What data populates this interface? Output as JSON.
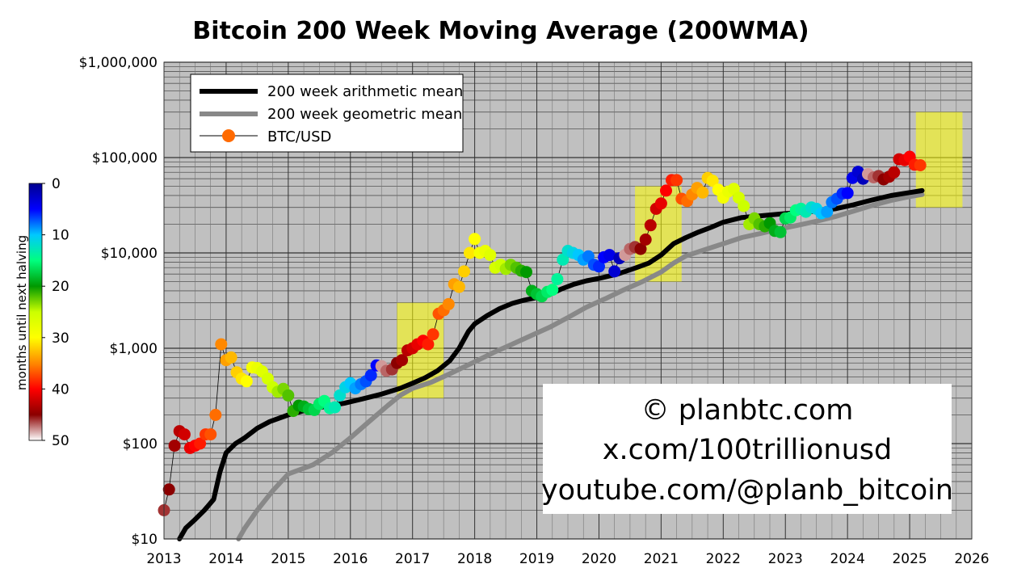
{
  "chart_data": {
    "type": "scatter",
    "title": "Bitcoin 200 Week Moving Average (200WMA)",
    "yscale": "log",
    "ylim": [
      10,
      1000000
    ],
    "xlim": [
      2013,
      2026
    ],
    "x_ticks": [
      2013,
      2014,
      2015,
      2016,
      2017,
      2018,
      2019,
      2020,
      2021,
      2022,
      2023,
      2024,
      2025,
      2026
    ],
    "x_tick_labels": [
      "2013",
      "2014",
      "2015",
      "2016",
      "2017",
      "2018",
      "2019",
      "2020",
      "2021",
      "2022",
      "2023",
      "2024",
      "2025",
      "2026"
    ],
    "y_ticks": [
      10,
      100,
      1000,
      10000,
      100000,
      1000000
    ],
    "y_tick_labels": [
      "$10",
      "$100",
      "$1,000",
      "$10,000",
      "$100,000",
      "$1,000,000"
    ],
    "legend": {
      "position": "top-left",
      "entries": [
        "200 week arithmetic mean",
        "200 week geometric mean",
        "BTC/USD"
      ]
    },
    "colorbar": {
      "label": "months until next halving",
      "min": 0,
      "max": 50,
      "ticks": [
        0,
        10,
        20,
        30,
        40,
        50
      ],
      "tick_labels": [
        "0",
        "10",
        "20",
        "30",
        "40",
        "50"
      ],
      "stops": [
        "#00008f",
        "#0000ff",
        "#00c8ff",
        "#00ff7f",
        "#009900",
        "#ccff00",
        "#ffff00",
        "#ff8800",
        "#ff0000",
        "#8b0000",
        "#ffffff"
      ]
    },
    "highlight_boxes": [
      {
        "x": [
          2016.75,
          2017.5
        ],
        "y": [
          300,
          3000
        ]
      },
      {
        "x": [
          2020.58,
          2021.33
        ],
        "y": [
          5000,
          50000
        ]
      },
      {
        "x": [
          2025.1,
          2025.85
        ],
        "y": [
          30000,
          300000
        ]
      }
    ],
    "series": [
      {
        "name": "200 week arithmetic mean",
        "color": "#000000",
        "points": [
          [
            2013.25,
            10
          ],
          [
            2013.35,
            13
          ],
          [
            2013.5,
            16
          ],
          [
            2013.65,
            20
          ],
          [
            2013.8,
            26
          ],
          [
            2013.9,
            50
          ],
          [
            2014.0,
            80
          ],
          [
            2014.15,
            100
          ],
          [
            2014.3,
            115
          ],
          [
            2014.5,
            145
          ],
          [
            2014.7,
            170
          ],
          [
            2015.0,
            200
          ],
          [
            2015.3,
            225
          ],
          [
            2015.6,
            245
          ],
          [
            2015.9,
            265
          ],
          [
            2016.2,
            295
          ],
          [
            2016.5,
            330
          ],
          [
            2016.8,
            380
          ],
          [
            2017.0,
            430
          ],
          [
            2017.2,
            490
          ],
          [
            2017.4,
            580
          ],
          [
            2017.6,
            740
          ],
          [
            2017.75,
            1000
          ],
          [
            2017.9,
            1500
          ],
          [
            2018.0,
            1800
          ],
          [
            2018.2,
            2200
          ],
          [
            2018.4,
            2600
          ],
          [
            2018.6,
            2950
          ],
          [
            2018.8,
            3200
          ],
          [
            2019.0,
            3400
          ],
          [
            2019.2,
            3650
          ],
          [
            2019.4,
            4200
          ],
          [
            2019.6,
            4700
          ],
          [
            2019.8,
            5100
          ],
          [
            2020.0,
            5400
          ],
          [
            2020.3,
            6000
          ],
          [
            2020.6,
            7000
          ],
          [
            2020.8,
            7800
          ],
          [
            2021.0,
            9500
          ],
          [
            2021.2,
            12500
          ],
          [
            2021.4,
            14500
          ],
          [
            2021.6,
            16500
          ],
          [
            2021.8,
            18500
          ],
          [
            2022.0,
            21000
          ],
          [
            2022.3,
            23500
          ],
          [
            2022.6,
            24500
          ],
          [
            2022.9,
            25500
          ],
          [
            2023.2,
            26500
          ],
          [
            2023.5,
            27500
          ],
          [
            2023.8,
            29000
          ],
          [
            2024.1,
            32000
          ],
          [
            2024.4,
            36000
          ],
          [
            2024.7,
            40000
          ],
          [
            2025.0,
            43000
          ],
          [
            2025.2,
            45000
          ]
        ]
      },
      {
        "name": "200 week geometric mean",
        "color": "#888888",
        "points": [
          [
            2014.2,
            10
          ],
          [
            2014.3,
            13
          ],
          [
            2014.5,
            20
          ],
          [
            2014.75,
            32
          ],
          [
            2015.0,
            48
          ],
          [
            2015.4,
            60
          ],
          [
            2015.7,
            80
          ],
          [
            2016.0,
            115
          ],
          [
            2016.3,
            170
          ],
          [
            2016.6,
            250
          ],
          [
            2016.8,
            320
          ],
          [
            2017.0,
            380
          ],
          [
            2017.3,
            440
          ],
          [
            2017.6,
            540
          ],
          [
            2018.0,
            720
          ],
          [
            2018.3,
            900
          ],
          [
            2018.6,
            1100
          ],
          [
            2018.9,
            1350
          ],
          [
            2019.2,
            1650
          ],
          [
            2019.5,
            2100
          ],
          [
            2019.8,
            2700
          ],
          [
            2020.1,
            3300
          ],
          [
            2020.4,
            4100
          ],
          [
            2020.7,
            5000
          ],
          [
            2021.0,
            6300
          ],
          [
            2021.2,
            7800
          ],
          [
            2021.4,
            9300
          ],
          [
            2021.7,
            10800
          ],
          [
            2022.0,
            12500
          ],
          [
            2022.3,
            14500
          ],
          [
            2022.6,
            16000
          ],
          [
            2022.9,
            17800
          ],
          [
            2023.2,
            19500
          ],
          [
            2023.5,
            21500
          ],
          [
            2023.8,
            24000
          ],
          [
            2024.1,
            27500
          ],
          [
            2024.4,
            31500
          ],
          [
            2024.7,
            35500
          ],
          [
            2025.0,
            39000
          ],
          [
            2025.2,
            41000
          ]
        ]
      },
      {
        "name": "BTC/USD",
        "line_color": "#000000",
        "points": [
          [
            2013.0,
            20,
            46
          ],
          [
            2013.08,
            33,
            45
          ],
          [
            2013.17,
            95,
            44
          ],
          [
            2013.25,
            135,
            43
          ],
          [
            2013.33,
            125,
            42
          ],
          [
            2013.42,
            90,
            41
          ],
          [
            2013.5,
            95,
            40
          ],
          [
            2013.58,
            100,
            39
          ],
          [
            2013.67,
            125,
            38
          ],
          [
            2013.75,
            125,
            37
          ],
          [
            2013.83,
            200,
            36
          ],
          [
            2013.92,
            1100,
            35
          ],
          [
            2014.0,
            750,
            34
          ],
          [
            2014.08,
            800,
            33
          ],
          [
            2014.17,
            560,
            32
          ],
          [
            2014.25,
            480,
            31
          ],
          [
            2014.33,
            450,
            30
          ],
          [
            2014.42,
            630,
            29
          ],
          [
            2014.5,
            620,
            28
          ],
          [
            2014.58,
            570,
            27
          ],
          [
            2014.67,
            480,
            26
          ],
          [
            2014.75,
            390,
            25
          ],
          [
            2014.83,
            350,
            24
          ],
          [
            2014.92,
            375,
            23
          ],
          [
            2015.0,
            320,
            22
          ],
          [
            2015.08,
            220,
            21
          ],
          [
            2015.17,
            250,
            20
          ],
          [
            2015.25,
            245,
            19
          ],
          [
            2015.33,
            230,
            18
          ],
          [
            2015.42,
            225,
            17
          ],
          [
            2015.5,
            260,
            16
          ],
          [
            2015.58,
            280,
            15
          ],
          [
            2015.67,
            235,
            14
          ],
          [
            2015.75,
            240,
            13
          ],
          [
            2015.83,
            320,
            12
          ],
          [
            2015.92,
            390,
            11
          ],
          [
            2016.0,
            430,
            10
          ],
          [
            2016.08,
            380,
            9
          ],
          [
            2016.17,
            420,
            8
          ],
          [
            2016.25,
            450,
            7
          ],
          [
            2016.33,
            520,
            6
          ],
          [
            2016.42,
            660,
            5
          ],
          [
            2016.5,
            650,
            48
          ],
          [
            2016.58,
            580,
            47
          ],
          [
            2016.67,
            600,
            46
          ],
          [
            2016.75,
            700,
            45
          ],
          [
            2016.83,
            750,
            44
          ],
          [
            2016.92,
            950,
            43
          ],
          [
            2017.0,
            1000,
            42
          ],
          [
            2017.08,
            1100,
            41
          ],
          [
            2017.17,
            1200,
            40
          ],
          [
            2017.25,
            1100,
            39
          ],
          [
            2017.33,
            1400,
            38
          ],
          [
            2017.42,
            2300,
            37
          ],
          [
            2017.5,
            2500,
            36
          ],
          [
            2017.58,
            2900,
            35
          ],
          [
            2017.67,
            4700,
            34
          ],
          [
            2017.75,
            4400,
            33
          ],
          [
            2017.83,
            6400,
            32
          ],
          [
            2017.92,
            10000,
            31
          ],
          [
            2018.0,
            14000,
            30
          ],
          [
            2018.08,
            10000,
            29
          ],
          [
            2018.17,
            10500,
            28
          ],
          [
            2018.25,
            9500,
            27
          ],
          [
            2018.33,
            7000,
            26
          ],
          [
            2018.42,
            7500,
            25
          ],
          [
            2018.5,
            6800,
            24
          ],
          [
            2018.58,
            7500,
            23
          ],
          [
            2018.67,
            7000,
            22
          ],
          [
            2018.75,
            6500,
            21
          ],
          [
            2018.83,
            6300,
            20
          ],
          [
            2018.92,
            4000,
            19
          ],
          [
            2019.0,
            3700,
            18
          ],
          [
            2019.08,
            3500,
            17
          ],
          [
            2019.17,
            3900,
            16
          ],
          [
            2019.25,
            4100,
            15
          ],
          [
            2019.33,
            5300,
            14
          ],
          [
            2019.42,
            8500,
            13
          ],
          [
            2019.5,
            10500,
            12
          ],
          [
            2019.58,
            10000,
            11
          ],
          [
            2019.67,
            9500,
            10
          ],
          [
            2019.75,
            8500,
            9
          ],
          [
            2019.83,
            9200,
            8
          ],
          [
            2019.92,
            7500,
            7
          ],
          [
            2020.0,
            7200,
            6
          ],
          [
            2020.08,
            9000,
            5
          ],
          [
            2020.17,
            9500,
            4
          ],
          [
            2020.25,
            6400,
            3
          ],
          [
            2020.33,
            8800,
            2
          ],
          [
            2020.42,
            9500,
            48
          ],
          [
            2020.5,
            11000,
            47
          ],
          [
            2020.58,
            11500,
            46
          ],
          [
            2020.67,
            11000,
            45
          ],
          [
            2020.75,
            13800,
            44
          ],
          [
            2020.83,
            19500,
            43
          ],
          [
            2020.92,
            29000,
            42
          ],
          [
            2021.0,
            33000,
            41
          ],
          [
            2021.08,
            45000,
            40
          ],
          [
            2021.17,
            58000,
            39
          ],
          [
            2021.25,
            58000,
            38
          ],
          [
            2021.33,
            37000,
            37
          ],
          [
            2021.42,
            35000,
            36
          ],
          [
            2021.5,
            41000,
            35
          ],
          [
            2021.58,
            48000,
            34
          ],
          [
            2021.67,
            43000,
            33
          ],
          [
            2021.75,
            61000,
            32
          ],
          [
            2021.83,
            57000,
            31
          ],
          [
            2021.92,
            46000,
            30
          ],
          [
            2022.0,
            38000,
            29
          ],
          [
            2022.08,
            44000,
            28
          ],
          [
            2022.17,
            47000,
            27
          ],
          [
            2022.25,
            38000,
            26
          ],
          [
            2022.33,
            31000,
            25
          ],
          [
            2022.42,
            20000,
            24
          ],
          [
            2022.5,
            23000,
            23
          ],
          [
            2022.58,
            20000,
            22
          ],
          [
            2022.67,
            19000,
            21
          ],
          [
            2022.75,
            20500,
            20
          ],
          [
            2022.83,
            17000,
            19
          ],
          [
            2022.92,
            16500,
            18
          ],
          [
            2023.0,
            23000,
            17
          ],
          [
            2023.08,
            23500,
            16
          ],
          [
            2023.17,
            28000,
            15
          ],
          [
            2023.25,
            29000,
            14
          ],
          [
            2023.33,
            27000,
            13
          ],
          [
            2023.42,
            30000,
            12
          ],
          [
            2023.5,
            29000,
            11
          ],
          [
            2023.58,
            26000,
            10
          ],
          [
            2023.67,
            27000,
            9
          ],
          [
            2023.75,
            34000,
            8
          ],
          [
            2023.83,
            37000,
            7
          ],
          [
            2023.92,
            42000,
            6
          ],
          [
            2024.0,
            42500,
            5
          ],
          [
            2024.08,
            61000,
            4
          ],
          [
            2024.17,
            71000,
            3
          ],
          [
            2024.25,
            60000,
            2
          ],
          [
            2024.33,
            67000,
            48
          ],
          [
            2024.42,
            62000,
            47
          ],
          [
            2024.5,
            64000,
            46
          ],
          [
            2024.58,
            59000,
            45
          ],
          [
            2024.67,
            63000,
            44
          ],
          [
            2024.75,
            70000,
            43
          ],
          [
            2024.83,
            96000,
            42
          ],
          [
            2024.92,
            94000,
            41
          ],
          [
            2025.0,
            102000,
            40
          ],
          [
            2025.08,
            84000,
            39
          ],
          [
            2025.17,
            83000,
            38
          ]
        ]
      }
    ]
  },
  "watermark": {
    "line1": "© planbtc.com",
    "line2": "x.com/100trillionusd",
    "line3": "youtube.com/@planb_bitcoin"
  }
}
